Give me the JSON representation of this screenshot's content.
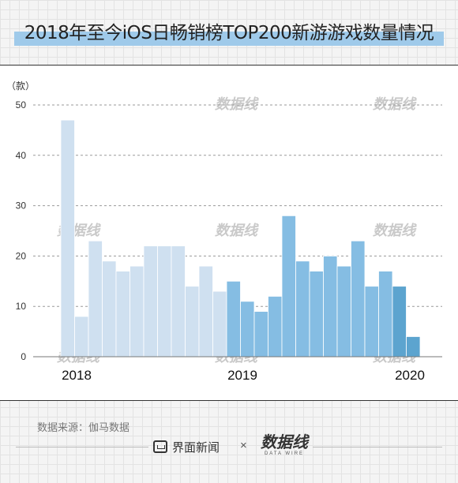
{
  "title": "2018年至今iOS日畅销榜TOP200新游游戏数量情况",
  "chart_data": {
    "type": "bar",
    "ylabel": "（款）",
    "ylim": [
      0,
      50
    ],
    "yticks": [
      0,
      10,
      20,
      30,
      40,
      50
    ],
    "grid": true,
    "xtick_labels": [
      "2018",
      "2019",
      "2020"
    ],
    "values": [
      47,
      8,
      23,
      19,
      17,
      18,
      22,
      22,
      22,
      14,
      18,
      13,
      15,
      11,
      9,
      12,
      28,
      19,
      17,
      20,
      18,
      23,
      14,
      17,
      14,
      4
    ],
    "groups": [
      {
        "year": "2018",
        "start": 0,
        "count": 12,
        "color": "#cfe0f0"
      },
      {
        "year": "2019",
        "start": 12,
        "count": 12,
        "color": "#85bde3"
      },
      {
        "year": "2020",
        "start": 24,
        "count": 2,
        "color": "#5ca4cf"
      }
    ]
  },
  "source": "数据来源：伽马数据",
  "footer": {
    "brand": "界面新闻",
    "separator": "×",
    "partner": "数据线",
    "partner_sub": "DATA WIRE"
  }
}
